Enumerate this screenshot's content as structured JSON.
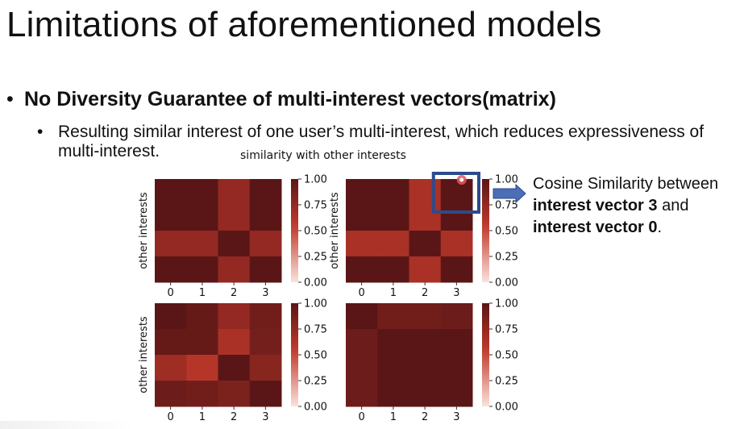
{
  "slide": {
    "title": "Limitations of aforementioned models",
    "bullet1": "No Diversity Guarantee of multi-interest vectors(matrix)",
    "bullet1_marker": "•",
    "bullet2": "Resulting similar interest of one user’s multi-interest, which reduces expressiveness of multi-interest.",
    "bullet2_marker": "•",
    "callout_parts": [
      "Cosine Similarity between ",
      "interest vector 3",
      " and ",
      "interest vector 0",
      "."
    ]
  },
  "chart_data": {
    "type": "heatmap",
    "title": "similarity with other interests",
    "ylabel": "other interests",
    "xticks": [
      "0",
      "1",
      "2",
      "3"
    ],
    "colorbar": {
      "range": [
        0,
        1
      ],
      "ticks": [
        "1.00",
        "0.75",
        "0.50",
        "0.25",
        "0.00"
      ]
    },
    "colors": {
      "dark": "#5a1616",
      "mid": "#c0392b",
      "light": "#fbe3dc",
      "highlight": "#2e4a8b",
      "arrow": "#4a6fb5"
    },
    "highlight": {
      "panel": 1,
      "row": 0,
      "col": 3
    },
    "panels": [
      {
        "matrix": [
          [
            1.0,
            1.0,
            0.75,
            1.0
          ],
          [
            1.0,
            1.0,
            0.75,
            1.0
          ],
          [
            0.75,
            0.75,
            1.0,
            0.75
          ],
          [
            1.0,
            1.0,
            0.75,
            1.0
          ]
        ]
      },
      {
        "matrix": [
          [
            1.0,
            1.0,
            0.65,
            1.0
          ],
          [
            1.0,
            1.0,
            0.65,
            1.0
          ],
          [
            0.65,
            0.65,
            1.0,
            0.65
          ],
          [
            1.0,
            1.0,
            0.65,
            1.0
          ]
        ]
      },
      {
        "matrix": [
          [
            1.0,
            0.95,
            0.75,
            0.9
          ],
          [
            0.95,
            0.95,
            0.65,
            0.88
          ],
          [
            0.7,
            0.6,
            1.0,
            0.8
          ],
          [
            0.92,
            0.9,
            0.85,
            1.0
          ]
        ]
      },
      {
        "matrix": [
          [
            1.0,
            0.9,
            0.9,
            0.92
          ],
          [
            0.92,
            1.0,
            1.0,
            1.0
          ],
          [
            0.92,
            1.0,
            1.0,
            1.0
          ],
          [
            0.92,
            1.0,
            1.0,
            1.0
          ]
        ]
      }
    ]
  }
}
